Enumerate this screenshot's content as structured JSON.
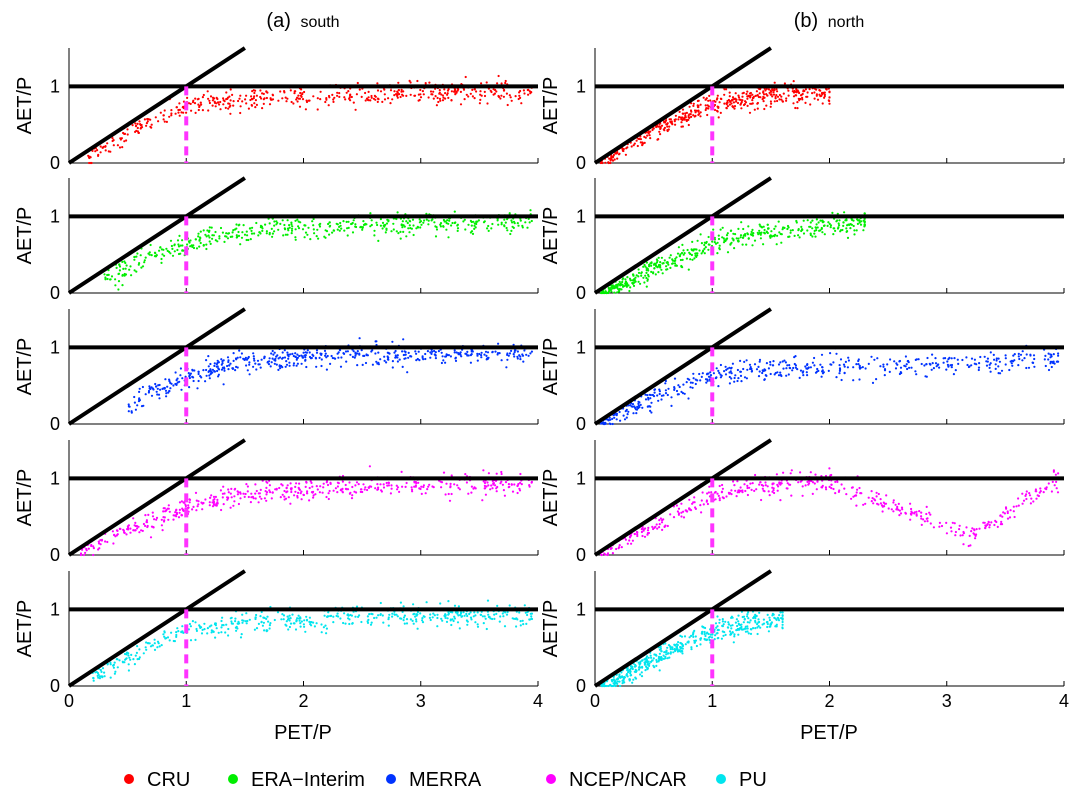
{
  "chart_data": {
    "type": "scatter",
    "layout": "5 rows x 2 columns",
    "column_titles": [
      {
        "prefix": "(a)",
        "name": "south"
      },
      {
        "prefix": "(b)",
        "name": "north"
      }
    ],
    "xlabel": "PET/P",
    "ylabel": "AET/P",
    "xlim": [
      0,
      4
    ],
    "ylim": [
      0,
      1.5
    ],
    "xticks": [
      "0",
      "1",
      "2",
      "3",
      "4"
    ],
    "yticks": [
      "0",
      "1"
    ],
    "reference_lines": [
      {
        "name": "energy limit",
        "equation": "AET/P = PET/P",
        "color": "#000000"
      },
      {
        "name": "water limit",
        "equation": "AET/P = 1",
        "color": "#000000"
      },
      {
        "name": "aridity index",
        "equation": "PET/P = 1",
        "color": "#ff33ff",
        "style": "dashed"
      }
    ],
    "legend": {
      "placement": "bottom",
      "entries": [
        {
          "name": "CRU",
          "color": "#ff0000"
        },
        {
          "name": "ERA−Interim",
          "color": "#00ee00"
        },
        {
          "name": "MERRA",
          "color": "#0033ff"
        },
        {
          "name": "NCEP/NCAR",
          "color": "#ff00ff"
        },
        {
          "name": "PU",
          "color": "#00e5ee"
        }
      ]
    },
    "series": [
      {
        "name": "CRU",
        "color": "#ff0000",
        "south": {
          "x": [
            0.15,
            0.3,
            0.5,
            0.7,
            0.9,
            1.1,
            1.3,
            1.6,
            2.0,
            2.5,
            3.0,
            3.5,
            3.95
          ],
          "y": [
            0.08,
            0.18,
            0.38,
            0.55,
            0.7,
            0.76,
            0.8,
            0.84,
            0.87,
            0.9,
            0.92,
            0.93,
            0.94
          ]
        },
        "north": {
          "x": [
            0.1,
            0.3,
            0.5,
            0.7,
            0.9,
            1.0,
            1.2,
            1.4,
            1.7,
            2.0
          ],
          "y": [
            0.08,
            0.25,
            0.42,
            0.55,
            0.72,
            0.78,
            0.83,
            0.87,
            0.9,
            0.92
          ]
        }
      },
      {
        "name": "ERA−Interim",
        "color": "#00ee00",
        "south": {
          "x": [
            0.3,
            0.5,
            0.7,
            0.9,
            1.1,
            1.3,
            1.6,
            2.0,
            2.5,
            3.0,
            3.5,
            3.95
          ],
          "y": [
            0.2,
            0.33,
            0.48,
            0.6,
            0.68,
            0.75,
            0.8,
            0.85,
            0.88,
            0.9,
            0.92,
            0.93
          ]
        },
        "north": {
          "x": [
            0.1,
            0.3,
            0.5,
            0.7,
            0.9,
            1.0,
            1.2,
            1.4,
            1.7,
            2.0,
            2.3
          ],
          "y": [
            0.05,
            0.15,
            0.3,
            0.45,
            0.58,
            0.65,
            0.72,
            0.78,
            0.82,
            0.86,
            0.9
          ]
        }
      },
      {
        "name": "MERRA",
        "color": "#0033ff",
        "south": {
          "x": [
            0.5,
            0.7,
            0.9,
            1.1,
            1.3,
            1.6,
            2.0,
            2.5,
            3.0,
            3.5,
            3.95
          ],
          "y": [
            0.25,
            0.42,
            0.55,
            0.65,
            0.75,
            0.83,
            0.88,
            0.9,
            0.91,
            0.92,
            0.93
          ]
        },
        "north": {
          "x": [
            0.1,
            0.3,
            0.5,
            0.7,
            0.9,
            1.0,
            1.2,
            1.6,
            2.0,
            2.5,
            3.0,
            3.5,
            3.95
          ],
          "y": [
            0.06,
            0.2,
            0.34,
            0.46,
            0.58,
            0.62,
            0.68,
            0.72,
            0.74,
            0.75,
            0.78,
            0.82,
            0.86
          ]
        }
      },
      {
        "name": "NCEP/NCAR",
        "color": "#ff00ff",
        "south": {
          "x": [
            0.1,
            0.3,
            0.5,
            0.7,
            0.9,
            1.1,
            1.3,
            1.6,
            2.0,
            2.5,
            3.0,
            3.5,
            3.95
          ],
          "y": [
            0.05,
            0.2,
            0.33,
            0.45,
            0.55,
            0.65,
            0.72,
            0.8,
            0.85,
            0.89,
            0.91,
            0.93,
            0.94
          ]
        },
        "north": {
          "x": [
            0.1,
            0.3,
            0.5,
            0.7,
            0.9,
            1.0,
            1.2,
            1.4,
            1.7,
            2.0,
            3.2,
            3.95
          ],
          "y": [
            0.1,
            0.25,
            0.4,
            0.55,
            0.7,
            0.76,
            0.82,
            0.88,
            0.93,
            0.96,
            0.25,
            0.98
          ]
        }
      },
      {
        "name": "PU",
        "color": "#00e5ee",
        "south": {
          "x": [
            0.2,
            0.4,
            0.6,
            0.8,
            1.0,
            1.2,
            1.5,
            2.0,
            2.5,
            3.0,
            3.5,
            3.95
          ],
          "y": [
            0.12,
            0.28,
            0.45,
            0.62,
            0.72,
            0.78,
            0.83,
            0.87,
            0.9,
            0.91,
            0.92,
            0.93
          ]
        },
        "north": {
          "x": [
            0.1,
            0.3,
            0.5,
            0.7,
            0.9,
            1.0,
            1.2,
            1.4,
            1.6
          ],
          "y": [
            0.05,
            0.2,
            0.35,
            0.5,
            0.65,
            0.72,
            0.78,
            0.84,
            0.88
          ]
        }
      }
    ]
  }
}
